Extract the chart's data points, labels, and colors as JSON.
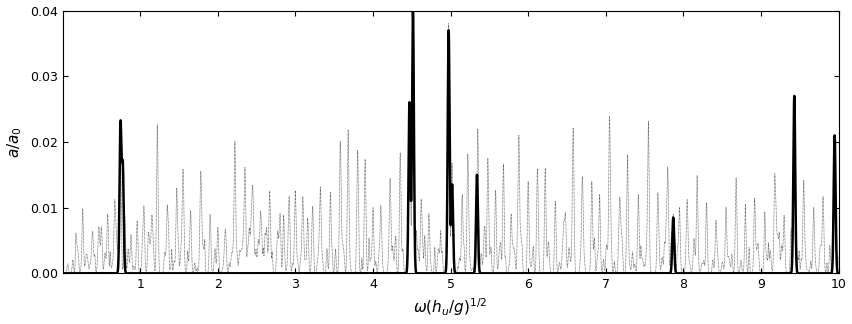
{
  "xlim": [
    0,
    10
  ],
  "ylim": [
    0,
    0.04
  ],
  "xlabel": "$\\omega(h_u/g)^{1/2}$",
  "ylabel": "$a/a_0$",
  "xticks": [
    1,
    2,
    3,
    4,
    5,
    6,
    7,
    8,
    9,
    10
  ],
  "yticks": [
    0,
    0.01,
    0.02,
    0.03,
    0.04
  ],
  "flat_peaks": [
    [
      0.745,
      0.0225
    ],
    [
      0.775,
      0.016
    ],
    [
      4.47,
      0.026
    ],
    [
      4.515,
      0.04
    ],
    [
      4.975,
      0.037
    ],
    [
      5.02,
      0.0135
    ],
    [
      5.34,
      0.015
    ],
    [
      7.87,
      0.0085
    ],
    [
      9.43,
      0.027
    ],
    [
      9.95,
      0.021
    ]
  ],
  "rippled_peaks": [
    [
      0.18,
      0.004
    ],
    [
      0.26,
      0.006
    ],
    [
      0.38,
      0.005
    ],
    [
      0.5,
      0.007
    ],
    [
      0.58,
      0.006
    ],
    [
      0.67,
      0.01
    ],
    [
      0.745,
      0.018
    ],
    [
      0.8,
      0.009
    ],
    [
      0.88,
      0.005
    ],
    [
      0.96,
      0.008
    ],
    [
      1.05,
      0.006
    ],
    [
      1.15,
      0.008
    ],
    [
      1.22,
      0.022
    ],
    [
      1.35,
      0.01
    ],
    [
      1.47,
      0.009
    ],
    [
      1.55,
      0.012
    ],
    [
      1.65,
      0.008
    ],
    [
      1.78,
      0.01
    ],
    [
      1.9,
      0.009
    ],
    [
      2.0,
      0.007
    ],
    [
      2.1,
      0.006
    ],
    [
      2.22,
      0.02
    ],
    [
      2.35,
      0.012
    ],
    [
      2.45,
      0.01
    ],
    [
      2.55,
      0.009
    ],
    [
      2.67,
      0.011
    ],
    [
      2.8,
      0.008
    ],
    [
      2.92,
      0.009
    ],
    [
      3.0,
      0.007
    ],
    [
      3.1,
      0.007
    ],
    [
      3.22,
      0.009
    ],
    [
      3.32,
      0.012
    ],
    [
      3.45,
      0.01
    ],
    [
      3.58,
      0.014
    ],
    [
      3.68,
      0.02
    ],
    [
      3.8,
      0.018
    ],
    [
      3.9,
      0.016
    ],
    [
      4.0,
      0.01
    ],
    [
      4.1,
      0.009
    ],
    [
      4.22,
      0.014
    ],
    [
      4.35,
      0.016
    ],
    [
      4.47,
      0.022
    ],
    [
      4.515,
      0.038
    ],
    [
      4.62,
      0.01
    ],
    [
      4.72,
      0.009
    ],
    [
      4.975,
      0.038
    ],
    [
      5.02,
      0.015
    ],
    [
      5.15,
      0.012
    ],
    [
      5.22,
      0.014
    ],
    [
      5.35,
      0.022
    ],
    [
      5.48,
      0.012
    ],
    [
      5.58,
      0.01
    ],
    [
      5.68,
      0.013
    ],
    [
      5.78,
      0.009
    ],
    [
      5.88,
      0.021
    ],
    [
      6.0,
      0.014
    ],
    [
      6.12,
      0.012
    ],
    [
      6.22,
      0.016
    ],
    [
      6.35,
      0.011
    ],
    [
      6.48,
      0.009
    ],
    [
      6.58,
      0.022
    ],
    [
      6.7,
      0.011
    ],
    [
      6.82,
      0.014
    ],
    [
      6.92,
      0.012
    ],
    [
      7.05,
      0.022
    ],
    [
      7.18,
      0.01
    ],
    [
      7.28,
      0.018
    ],
    [
      7.42,
      0.012
    ],
    [
      7.55,
      0.02
    ],
    [
      7.67,
      0.011
    ],
    [
      7.8,
      0.014
    ],
    [
      7.87,
      0.008
    ],
    [
      7.95,
      0.01
    ],
    [
      8.05,
      0.008
    ],
    [
      8.18,
      0.012
    ],
    [
      8.3,
      0.009
    ],
    [
      8.42,
      0.008
    ],
    [
      8.55,
      0.01
    ],
    [
      8.68,
      0.009
    ],
    [
      8.8,
      0.008
    ],
    [
      8.92,
      0.01
    ],
    [
      9.05,
      0.007
    ],
    [
      9.18,
      0.009
    ],
    [
      9.3,
      0.008
    ],
    [
      9.43,
      0.022
    ],
    [
      9.55,
      0.014
    ],
    [
      9.68,
      0.01
    ],
    [
      9.8,
      0.009
    ],
    [
      9.95,
      0.015
    ]
  ],
  "rippled_tiny_seed": 77,
  "background_color": "#ffffff",
  "flat_color": "#000000",
  "rippled_color": "#444444",
  "flat_linewidth": 1.8,
  "rippled_linewidth": 0.5,
  "flat_sigma": 0.012,
  "rippled_sigma": 0.01
}
